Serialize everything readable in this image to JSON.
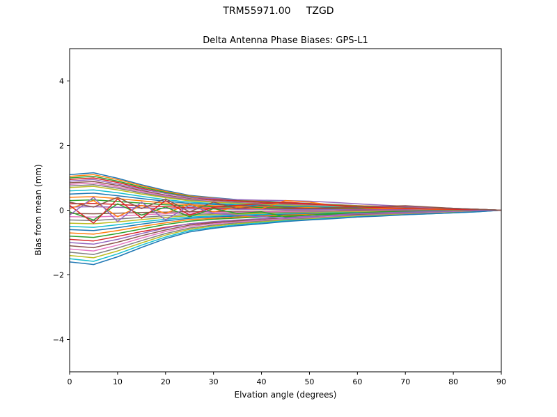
{
  "chart_data": {
    "type": "line",
    "suptitle": "TRM55971.00     TZGD",
    "title": "Delta Antenna Phase Biases: GPS-L1",
    "xlabel": "Elvation angle (degrees)",
    "ylabel": "Bias from mean (mm)",
    "xlim": [
      0,
      90
    ],
    "ylim": [
      -5,
      5
    ],
    "xticks": [
      0,
      10,
      20,
      30,
      40,
      50,
      60,
      70,
      80,
      90
    ],
    "yticks": [
      -4,
      -2,
      0,
      2,
      4
    ],
    "grid": false,
    "legend": "none",
    "x": [
      0,
      5,
      10,
      15,
      20,
      25,
      30,
      35,
      40,
      45,
      50,
      55,
      60,
      65,
      70,
      75,
      80,
      85,
      90
    ],
    "series": [
      {
        "name": "s01",
        "color": "#1f77b4",
        "values": [
          1.1,
          1.16,
          0.99,
          0.79,
          0.61,
          0.46,
          0.39,
          0.33,
          0.29,
          0.24,
          0.21,
          0.18,
          0.14,
          0.12,
          0.1,
          0.08,
          0.06,
          0.03,
          0.0
        ]
      },
      {
        "name": "s02",
        "color": "#ff7f0e",
        "values": [
          1.05,
          1.1,
          0.95,
          0.76,
          0.58,
          0.44,
          0.37,
          0.32,
          0.27,
          0.23,
          0.2,
          0.17,
          0.14,
          0.12,
          0.09,
          0.07,
          0.05,
          0.03,
          0.0
        ]
      },
      {
        "name": "s03",
        "color": "#2ca02c",
        "values": [
          1.0,
          1.05,
          0.9,
          0.72,
          0.55,
          0.42,
          0.35,
          0.3,
          0.26,
          0.22,
          0.19,
          0.16,
          0.13,
          0.11,
          0.09,
          0.07,
          0.05,
          0.03,
          0.0
        ]
      },
      {
        "name": "s04",
        "color": "#d62728",
        "values": [
          0.95,
          1.0,
          0.86,
          0.68,
          0.52,
          0.4,
          0.33,
          0.29,
          0.25,
          0.21,
          0.18,
          0.15,
          0.12,
          0.1,
          0.09,
          0.07,
          0.05,
          0.03,
          0.0
        ]
      },
      {
        "name": "s05",
        "color": "#9467bd",
        "values": [
          0.9,
          0.95,
          0.81,
          0.65,
          0.52,
          0.4,
          0.36,
          0.33,
          0.31,
          0.3,
          0.28,
          0.24,
          0.2,
          0.16,
          0.12,
          0.09,
          0.06,
          0.03,
          0.0
        ]
      },
      {
        "name": "s06",
        "color": "#8c564b",
        "values": [
          0.85,
          0.89,
          0.77,
          0.61,
          0.47,
          0.36,
          0.3,
          0.26,
          0.22,
          0.19,
          0.16,
          0.14,
          0.11,
          0.09,
          0.08,
          0.06,
          0.04,
          0.03,
          0.0
        ]
      },
      {
        "name": "s07",
        "color": "#e377c2",
        "values": [
          0.8,
          0.84,
          0.72,
          0.58,
          0.44,
          0.34,
          0.28,
          0.24,
          0.21,
          0.18,
          0.15,
          0.13,
          0.1,
          0.09,
          0.07,
          0.06,
          0.04,
          0.02,
          0.0
        ]
      },
      {
        "name": "s08",
        "color": "#7f7f7f",
        "values": [
          0.75,
          0.79,
          0.68,
          0.54,
          0.41,
          0.32,
          0.26,
          0.23,
          0.2,
          0.17,
          0.14,
          0.12,
          0.1,
          0.08,
          0.07,
          0.05,
          0.04,
          0.02,
          0.0
        ]
      },
      {
        "name": "s09",
        "color": "#bcbd22",
        "values": [
          0.7,
          0.74,
          0.63,
          0.5,
          0.39,
          0.29,
          0.25,
          0.21,
          0.18,
          0.15,
          0.13,
          0.11,
          0.09,
          0.08,
          0.06,
          0.05,
          0.04,
          0.02,
          0.0
        ]
      },
      {
        "name": "s10",
        "color": "#17becf",
        "values": [
          0.6,
          0.63,
          0.54,
          0.43,
          0.33,
          0.25,
          0.21,
          0.18,
          0.16,
          0.13,
          0.11,
          0.1,
          0.08,
          0.07,
          0.05,
          0.04,
          0.03,
          0.02,
          0.0
        ]
      },
      {
        "name": "s11",
        "color": "#1f77b4",
        "values": [
          0.5,
          0.53,
          0.45,
          0.36,
          0.28,
          0.21,
          0.18,
          0.15,
          0.13,
          0.11,
          0.1,
          0.08,
          0.07,
          0.06,
          0.05,
          0.04,
          0.03,
          0.02,
          0.0
        ]
      },
      {
        "name": "s12",
        "color": "#ff7f0e",
        "values": [
          0.4,
          0.42,
          0.36,
          0.29,
          0.22,
          0.17,
          0.14,
          0.12,
          0.1,
          0.09,
          0.08,
          0.06,
          0.05,
          0.04,
          0.04,
          0.03,
          0.02,
          0.01,
          0.0
        ]
      },
      {
        "name": "s13",
        "color": "#2ca02c",
        "values": [
          0.3,
          0.32,
          0.27,
          0.22,
          0.17,
          0.13,
          0.11,
          0.09,
          0.08,
          0.07,
          0.06,
          0.05,
          0.04,
          0.03,
          0.03,
          0.02,
          0.02,
          0.01,
          0.0
        ]
      },
      {
        "name": "s14",
        "color": "#d62728",
        "values": [
          0.2,
          0.21,
          0.18,
          0.14,
          0.11,
          0.08,
          0.07,
          0.06,
          0.05,
          0.04,
          0.04,
          0.03,
          0.03,
          0.02,
          0.02,
          0.01,
          0.01,
          0.01,
          0.0
        ]
      },
      {
        "name": "s15",
        "color": "#9467bd",
        "values": [
          0.1,
          0.11,
          0.09,
          0.07,
          0.06,
          0.04,
          0.04,
          0.03,
          0.03,
          0.02,
          0.02,
          0.02,
          0.01,
          0.01,
          0.01,
          0.01,
          0.01,
          0.0,
          0.0
        ]
      },
      {
        "name": "s16",
        "color": "#8c564b",
        "values": [
          -0.1,
          -0.11,
          -0.09,
          -0.07,
          -0.06,
          -0.04,
          -0.04,
          -0.03,
          -0.03,
          -0.02,
          -0.02,
          -0.02,
          -0.01,
          -0.01,
          -0.01,
          -0.01,
          -0.01,
          0.0,
          0.0
        ]
      },
      {
        "name": "s17",
        "color": "#e377c2",
        "values": [
          -0.2,
          -0.21,
          -0.18,
          -0.14,
          -0.11,
          -0.08,
          -0.07,
          -0.06,
          -0.05,
          -0.04,
          -0.04,
          -0.03,
          -0.03,
          -0.02,
          -0.02,
          -0.01,
          -0.01,
          -0.01,
          0.0
        ]
      },
      {
        "name": "s18",
        "color": "#7f7f7f",
        "values": [
          -0.3,
          -0.32,
          -0.27,
          -0.22,
          -0.17,
          -0.13,
          -0.11,
          -0.09,
          -0.08,
          -0.07,
          -0.06,
          -0.05,
          -0.04,
          -0.03,
          -0.03,
          -0.02,
          -0.02,
          -0.01,
          0.0
        ]
      },
      {
        "name": "s19",
        "color": "#bcbd22",
        "values": [
          -0.4,
          -0.42,
          -0.36,
          -0.29,
          -0.22,
          -0.17,
          -0.14,
          -0.12,
          -0.1,
          -0.09,
          -0.08,
          -0.06,
          -0.05,
          -0.04,
          -0.04,
          -0.03,
          -0.02,
          -0.01,
          0.0
        ]
      },
      {
        "name": "s20",
        "color": "#17becf",
        "values": [
          -0.5,
          -0.53,
          -0.45,
          -0.36,
          -0.28,
          -0.21,
          -0.18,
          -0.15,
          -0.13,
          -0.11,
          -0.1,
          -0.08,
          -0.07,
          -0.06,
          -0.05,
          -0.04,
          -0.03,
          -0.02,
          0.0
        ]
      },
      {
        "name": "s21",
        "color": "#1f77b4",
        "values": [
          -0.6,
          -0.63,
          -0.54,
          -0.43,
          -0.33,
          -0.25,
          -0.21,
          -0.18,
          -0.16,
          -0.13,
          -0.11,
          -0.1,
          -0.08,
          -0.07,
          -0.05,
          -0.04,
          -0.03,
          -0.02,
          0.0
        ]
      },
      {
        "name": "s22",
        "color": "#ff7f0e",
        "values": [
          -0.7,
          -0.74,
          -0.63,
          -0.5,
          -0.39,
          -0.29,
          -0.25,
          -0.21,
          -0.18,
          -0.15,
          -0.13,
          -0.11,
          -0.09,
          -0.08,
          -0.06,
          -0.05,
          -0.04,
          -0.02,
          0.0
        ]
      },
      {
        "name": "s23",
        "color": "#2ca02c",
        "values": [
          -0.8,
          -0.84,
          -0.72,
          -0.58,
          -0.44,
          -0.34,
          -0.28,
          -0.24,
          -0.21,
          -0.18,
          -0.15,
          -0.13,
          -0.1,
          -0.09,
          -0.07,
          -0.06,
          -0.04,
          -0.02,
          0.0
        ]
      },
      {
        "name": "s24",
        "color": "#d62728",
        "values": [
          -0.9,
          -0.95,
          -0.81,
          -0.66,
          -0.53,
          -0.42,
          -0.37,
          -0.34,
          -0.32,
          -0.3,
          -0.28,
          -0.25,
          -0.21,
          -0.17,
          -0.13,
          -0.1,
          -0.06,
          -0.03,
          0.0
        ]
      },
      {
        "name": "s25",
        "color": "#9467bd",
        "values": [
          -1.0,
          -1.05,
          -0.9,
          -0.72,
          -0.55,
          -0.42,
          -0.35,
          -0.3,
          -0.26,
          -0.22,
          -0.19,
          -0.16,
          -0.13,
          -0.11,
          -0.09,
          -0.07,
          -0.05,
          -0.03,
          0.0
        ]
      },
      {
        "name": "s26",
        "color": "#8c564b",
        "values": [
          -1.1,
          -1.16,
          -0.99,
          -0.79,
          -0.61,
          -0.46,
          -0.39,
          -0.33,
          -0.29,
          -0.24,
          -0.21,
          -0.18,
          -0.14,
          -0.12,
          -0.1,
          -0.08,
          -0.06,
          -0.03,
          0.0
        ]
      },
      {
        "name": "s27",
        "color": "#e377c2",
        "values": [
          -1.2,
          -1.26,
          -1.08,
          -0.86,
          -0.66,
          -0.5,
          -0.42,
          -0.36,
          -0.31,
          -0.26,
          -0.23,
          -0.19,
          -0.16,
          -0.13,
          -0.11,
          -0.08,
          -0.06,
          -0.04,
          0.0
        ]
      },
      {
        "name": "s28",
        "color": "#7f7f7f",
        "values": [
          -1.3,
          -1.37,
          -1.17,
          -0.94,
          -0.72,
          -0.55,
          -0.46,
          -0.39,
          -0.34,
          -0.29,
          -0.25,
          -0.21,
          -0.17,
          -0.14,
          -0.12,
          -0.09,
          -0.07,
          -0.04,
          0.0
        ]
      },
      {
        "name": "s29",
        "color": "#bcbd22",
        "values": [
          -1.4,
          -1.47,
          -1.26,
          -1.01,
          -0.77,
          -0.59,
          -0.49,
          -0.42,
          -0.36,
          -0.31,
          -0.27,
          -0.22,
          -0.18,
          -0.15,
          -0.13,
          -0.1,
          -0.07,
          -0.04,
          0.0
        ]
      },
      {
        "name": "s30",
        "color": "#17becf",
        "values": [
          -1.5,
          -1.58,
          -1.35,
          -1.08,
          -0.83,
          -0.63,
          -0.53,
          -0.45,
          -0.39,
          -0.33,
          -0.29,
          -0.24,
          -0.2,
          -0.17,
          -0.14,
          -0.11,
          -0.08,
          -0.05,
          0.0
        ]
      },
      {
        "name": "s31",
        "color": "#1f77b4",
        "values": [
          -1.6,
          -1.68,
          -1.44,
          -1.15,
          -0.88,
          -0.67,
          -0.56,
          -0.48,
          -0.42,
          -0.35,
          -0.3,
          -0.26,
          -0.21,
          -0.18,
          -0.14,
          -0.11,
          -0.08,
          -0.05,
          0.0
        ]
      },
      {
        "name": "s32",
        "color": "#ff7f0e",
        "values": [
          0.05,
          0.3,
          -0.2,
          0.15,
          -0.1,
          0.2,
          -0.05,
          0.1,
          0.05,
          0.3,
          0.25,
          0.15,
          0.1,
          0.05,
          0.05,
          0.03,
          0.02,
          0.01,
          0.0
        ]
      },
      {
        "name": "s33",
        "color": "#2ca02c",
        "values": [
          -0.05,
          -0.3,
          0.2,
          -0.15,
          0.1,
          -0.2,
          0.05,
          -0.1,
          -0.05,
          -0.2,
          -0.15,
          -0.1,
          -0.08,
          -0.05,
          -0.03,
          -0.02,
          -0.02,
          -0.01,
          0.0
        ]
      },
      {
        "name": "s34",
        "color": "#d62728",
        "values": [
          0.15,
          -0.4,
          0.35,
          -0.25,
          0.3,
          -0.15,
          0.1,
          0.15,
          0.2,
          0.25,
          0.2,
          0.15,
          0.1,
          0.08,
          0.06,
          0.04,
          0.03,
          0.01,
          0.0
        ]
      },
      {
        "name": "s35",
        "color": "#9467bd",
        "values": [
          -0.15,
          0.4,
          -0.35,
          0.25,
          -0.3,
          0.15,
          -0.1,
          -0.15,
          -0.2,
          -0.25,
          -0.2,
          -0.15,
          -0.1,
          -0.08,
          -0.06,
          -0.04,
          -0.03,
          -0.01,
          0.0
        ]
      },
      {
        "name": "s36",
        "color": "#8c564b",
        "values": [
          0.25,
          0.1,
          0.4,
          0.05,
          0.35,
          -0.05,
          0.25,
          0.05,
          0.15,
          0.1,
          0.05,
          0.08,
          0.1,
          0.12,
          0.14,
          0.1,
          0.06,
          0.03,
          0.0
        ]
      }
    ]
  }
}
